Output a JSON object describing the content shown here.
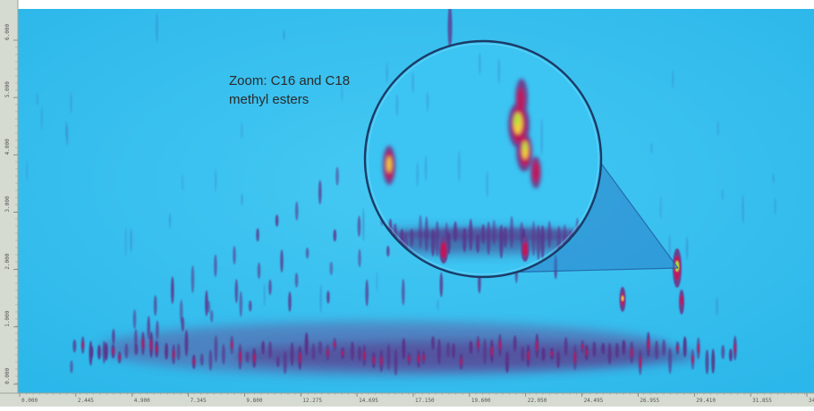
{
  "chart_data": {
    "type": "heatmap",
    "title": "",
    "xlabel": "",
    "ylabel": "",
    "x_tick_labels": [
      "0.000",
      "2.445",
      "4.900",
      "7.345",
      "9.800",
      "12.275",
      "14.695",
      "17.150",
      "19.600",
      "22.050",
      "24.495",
      "26.955",
      "29.410",
      "31.855",
      "34.310"
    ],
    "y_tick_labels": [
      "0.000",
      "1.000",
      "2.000",
      "3.000",
      "4.000",
      "5.000",
      "6.000"
    ],
    "background_color": "#30c0f0",
    "colormap": [
      "#30c0f0",
      "#6a3f8f",
      "#c0185a",
      "#f5d03a",
      "#aee53a"
    ],
    "annotation": {
      "text_line1": "Zoom: C16 and C18",
      "text_line2": "methyl esters",
      "kind": "magnified-circle-inset",
      "source_point": {
        "x": 31.2,
        "y": 1.0
      }
    },
    "notable_peaks": [
      {
        "x": 31.2,
        "y": 1.0,
        "intensity": "high"
      },
      {
        "x": 28.6,
        "y": 0.75,
        "intensity": "high"
      },
      {
        "x": 31.3,
        "y": 0.7,
        "intensity": "medium"
      }
    ]
  },
  "colors": {
    "plot_background": "#30c0f0",
    "axis_strip": "#d8dcd4",
    "zoom_cone": "#2a7fc8",
    "circle_outline": "#1c3a66"
  }
}
